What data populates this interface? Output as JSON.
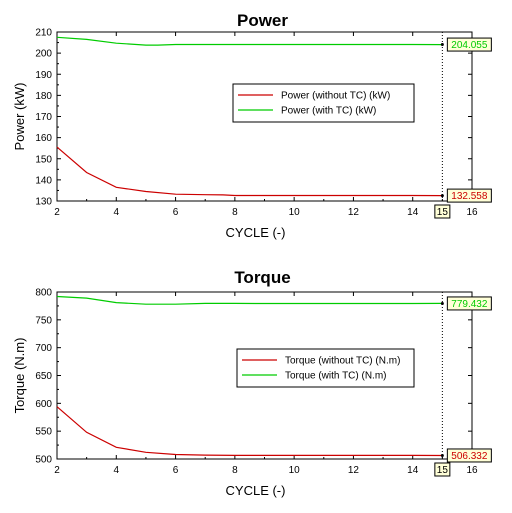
{
  "chart_data": [
    {
      "type": "line",
      "title": "Power",
      "xlabel": "CYCLE (-)",
      "ylabel": "Power (kW)",
      "xlim": [
        2,
        16
      ],
      "ylim": [
        130,
        210
      ],
      "xticks": [
        2,
        4,
        6,
        8,
        10,
        12,
        14,
        16
      ],
      "yticks": [
        130,
        140,
        150,
        160,
        170,
        180,
        190,
        200,
        210
      ],
      "grid": false,
      "legend_position": "center-right",
      "cursor_x": 15,
      "cursor_label": "15",
      "series": [
        {
          "name": "Power (without TC) (kW)",
          "color": "#cc0000",
          "x": [
            2,
            3,
            4,
            5,
            6,
            7,
            7.6,
            8,
            9,
            10,
            11,
            12,
            13,
            14,
            15
          ],
          "y": [
            155.5,
            143.5,
            136.5,
            134.5,
            133.2,
            133.0,
            132.9,
            132.6,
            132.6,
            132.6,
            132.6,
            132.6,
            132.6,
            132.6,
            132.558
          ],
          "end_label": "132.558"
        },
        {
          "name": "Power (with TC) (kW)",
          "color": "#00cc00",
          "x": [
            2,
            3,
            4,
            5,
            5.4,
            6,
            7,
            8,
            9,
            10,
            11,
            12,
            13,
            14,
            15
          ],
          "y": [
            207.5,
            206.5,
            204.7,
            203.8,
            203.8,
            204.1,
            204.1,
            204.1,
            204.1,
            204.1,
            204.1,
            204.1,
            204.1,
            204.1,
            204.055
          ],
          "end_label": "204.055"
        }
      ]
    },
    {
      "type": "line",
      "title": "Torque",
      "xlabel": "CYCLE (-)",
      "ylabel": "Torque (N.m)",
      "xlim": [
        2,
        16
      ],
      "ylim": [
        500,
        800
      ],
      "xticks": [
        2,
        4,
        6,
        8,
        10,
        12,
        14,
        16
      ],
      "yticks": [
        500,
        550,
        600,
        650,
        700,
        750,
        800
      ],
      "grid": false,
      "legend_position": "center-right",
      "cursor_x": 15,
      "cursor_label": "15",
      "series": [
        {
          "name": "Torque (without TC) (N.m)",
          "color": "#cc0000",
          "x": [
            2,
            3,
            4,
            5,
            6,
            7,
            8,
            9,
            10,
            11,
            12,
            13,
            14,
            15
          ],
          "y": [
            594,
            548,
            521,
            512,
            508,
            507,
            506.5,
            506.4,
            506.4,
            506.4,
            506.4,
            506.4,
            506.4,
            506.332
          ],
          "end_label": "506.332"
        },
        {
          "name": "Torque (with TC) (N.m)",
          "color": "#00cc00",
          "x": [
            2,
            3,
            4,
            5,
            6,
            7,
            8,
            9,
            10,
            11,
            12,
            13,
            14,
            15
          ],
          "y": [
            792,
            789,
            781,
            778,
            778,
            779.5,
            779.5,
            779.4,
            779.4,
            779.4,
            779.4,
            779.4,
            779.4,
            779.432
          ],
          "end_label": "779.432"
        }
      ]
    }
  ]
}
